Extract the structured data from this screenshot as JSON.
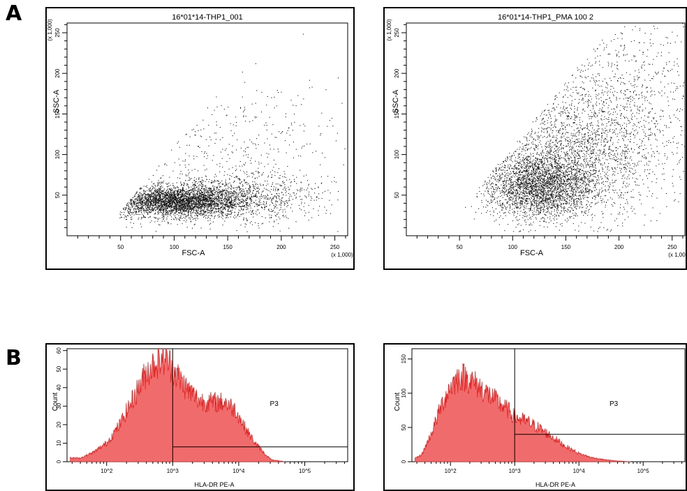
{
  "panels": {
    "a_letter": "A",
    "b_letter": "B"
  },
  "chart_data": [
    {
      "type": "scatter",
      "title": "16*01*14-THP1_001",
      "xlabel": "FSC-A",
      "ylabel": "SSC-A",
      "x_multiplier": "(x 1,000)",
      "y_multiplier": "(x 1,000)",
      "xlim": [
        0,
        262
      ],
      "ylim": [
        0,
        262
      ],
      "x_ticks": [
        50,
        100,
        150,
        200,
        250
      ],
      "y_ticks": [
        50,
        100,
        150,
        200,
        250
      ],
      "clusters": [
        {
          "cx": 100,
          "cy": 42,
          "sx": 30,
          "sy": 9,
          "n": 3200
        },
        {
          "cx": 150,
          "cy": 48,
          "sx": 40,
          "sy": 14,
          "n": 1300
        },
        {
          "cx": 160,
          "cy": 100,
          "sx": 50,
          "sy": 45,
          "n": 450
        }
      ],
      "point_color": "#111111"
    },
    {
      "type": "scatter",
      "title": "16*01*14-THP1_PMA 100 2",
      "xlabel": "FSC-A",
      "ylabel": "SSC-A",
      "x_multiplier": "(x 1,000)",
      "y_multiplier": "(x 1,000)",
      "xlim": [
        0,
        262
      ],
      "ylim": [
        0,
        262
      ],
      "x_ticks": [
        50,
        100,
        150,
        200,
        250
      ],
      "y_ticks": [
        50,
        100,
        150,
        200,
        250
      ],
      "clusters": [
        {
          "cx": 125,
          "cy": 62,
          "sx": 25,
          "sy": 20,
          "n": 2800
        },
        {
          "cx": 160,
          "cy": 100,
          "sx": 40,
          "sy": 40,
          "n": 2000
        },
        {
          "cx": 200,
          "cy": 170,
          "sx": 45,
          "sy": 50,
          "n": 900
        }
      ],
      "point_color": "#111111"
    },
    {
      "type": "area",
      "xlabel": "HLA-DR PE-A",
      "ylabel": "Count",
      "x_scale": "log",
      "xlim": [
        1.4,
        5.65
      ],
      "ylim": [
        0,
        61
      ],
      "x_ticks": [
        "10^2",
        "10^3",
        "10^4",
        "10^5"
      ],
      "y_ticks": [
        0,
        10,
        20,
        30,
        40,
        50,
        60
      ],
      "x": [
        1.45,
        1.6,
        1.8,
        2.0,
        2.2,
        2.4,
        2.6,
        2.75,
        2.9,
        3.0,
        3.2,
        3.4,
        3.6,
        3.8,
        3.95,
        4.1,
        4.25,
        4.4,
        4.5,
        4.7
      ],
      "values": [
        2,
        2,
        5,
        10,
        20,
        34,
        48,
        54,
        56,
        50,
        40,
        33,
        32,
        32,
        28,
        18,
        10,
        4,
        1,
        0
      ],
      "fill_color": "#f06b6b",
      "line_color": "#e02020",
      "gate": {
        "label": "P3",
        "x_start": 3.0,
        "x_end": 5.65,
        "y": 8
      }
    },
    {
      "type": "area",
      "xlabel": "HLA-DR PE-A",
      "ylabel": "Count",
      "x_scale": "log",
      "xlim": [
        1.4,
        5.65
      ],
      "ylim": [
        0,
        165
      ],
      "x_ticks": [
        "10^2",
        "10^3",
        "10^4",
        "10^5"
      ],
      "y_ticks": [
        0,
        50,
        100,
        150
      ],
      "x": [
        1.45,
        1.55,
        1.7,
        1.85,
        2.0,
        2.15,
        2.3,
        2.5,
        2.7,
        2.9,
        3.0,
        3.2,
        3.4,
        3.6,
        3.8,
        4.0,
        4.2,
        4.4,
        4.6,
        4.8
      ],
      "values": [
        5,
        10,
        40,
        80,
        110,
        125,
        120,
        105,
        90,
        75,
        65,
        58,
        48,
        35,
        22,
        12,
        6,
        3,
        1,
        0
      ],
      "fill_color": "#f06b6b",
      "line_color": "#e02020",
      "gate": {
        "label": "P3",
        "x_start": 3.0,
        "x_end": 5.65,
        "y": 40
      }
    }
  ]
}
